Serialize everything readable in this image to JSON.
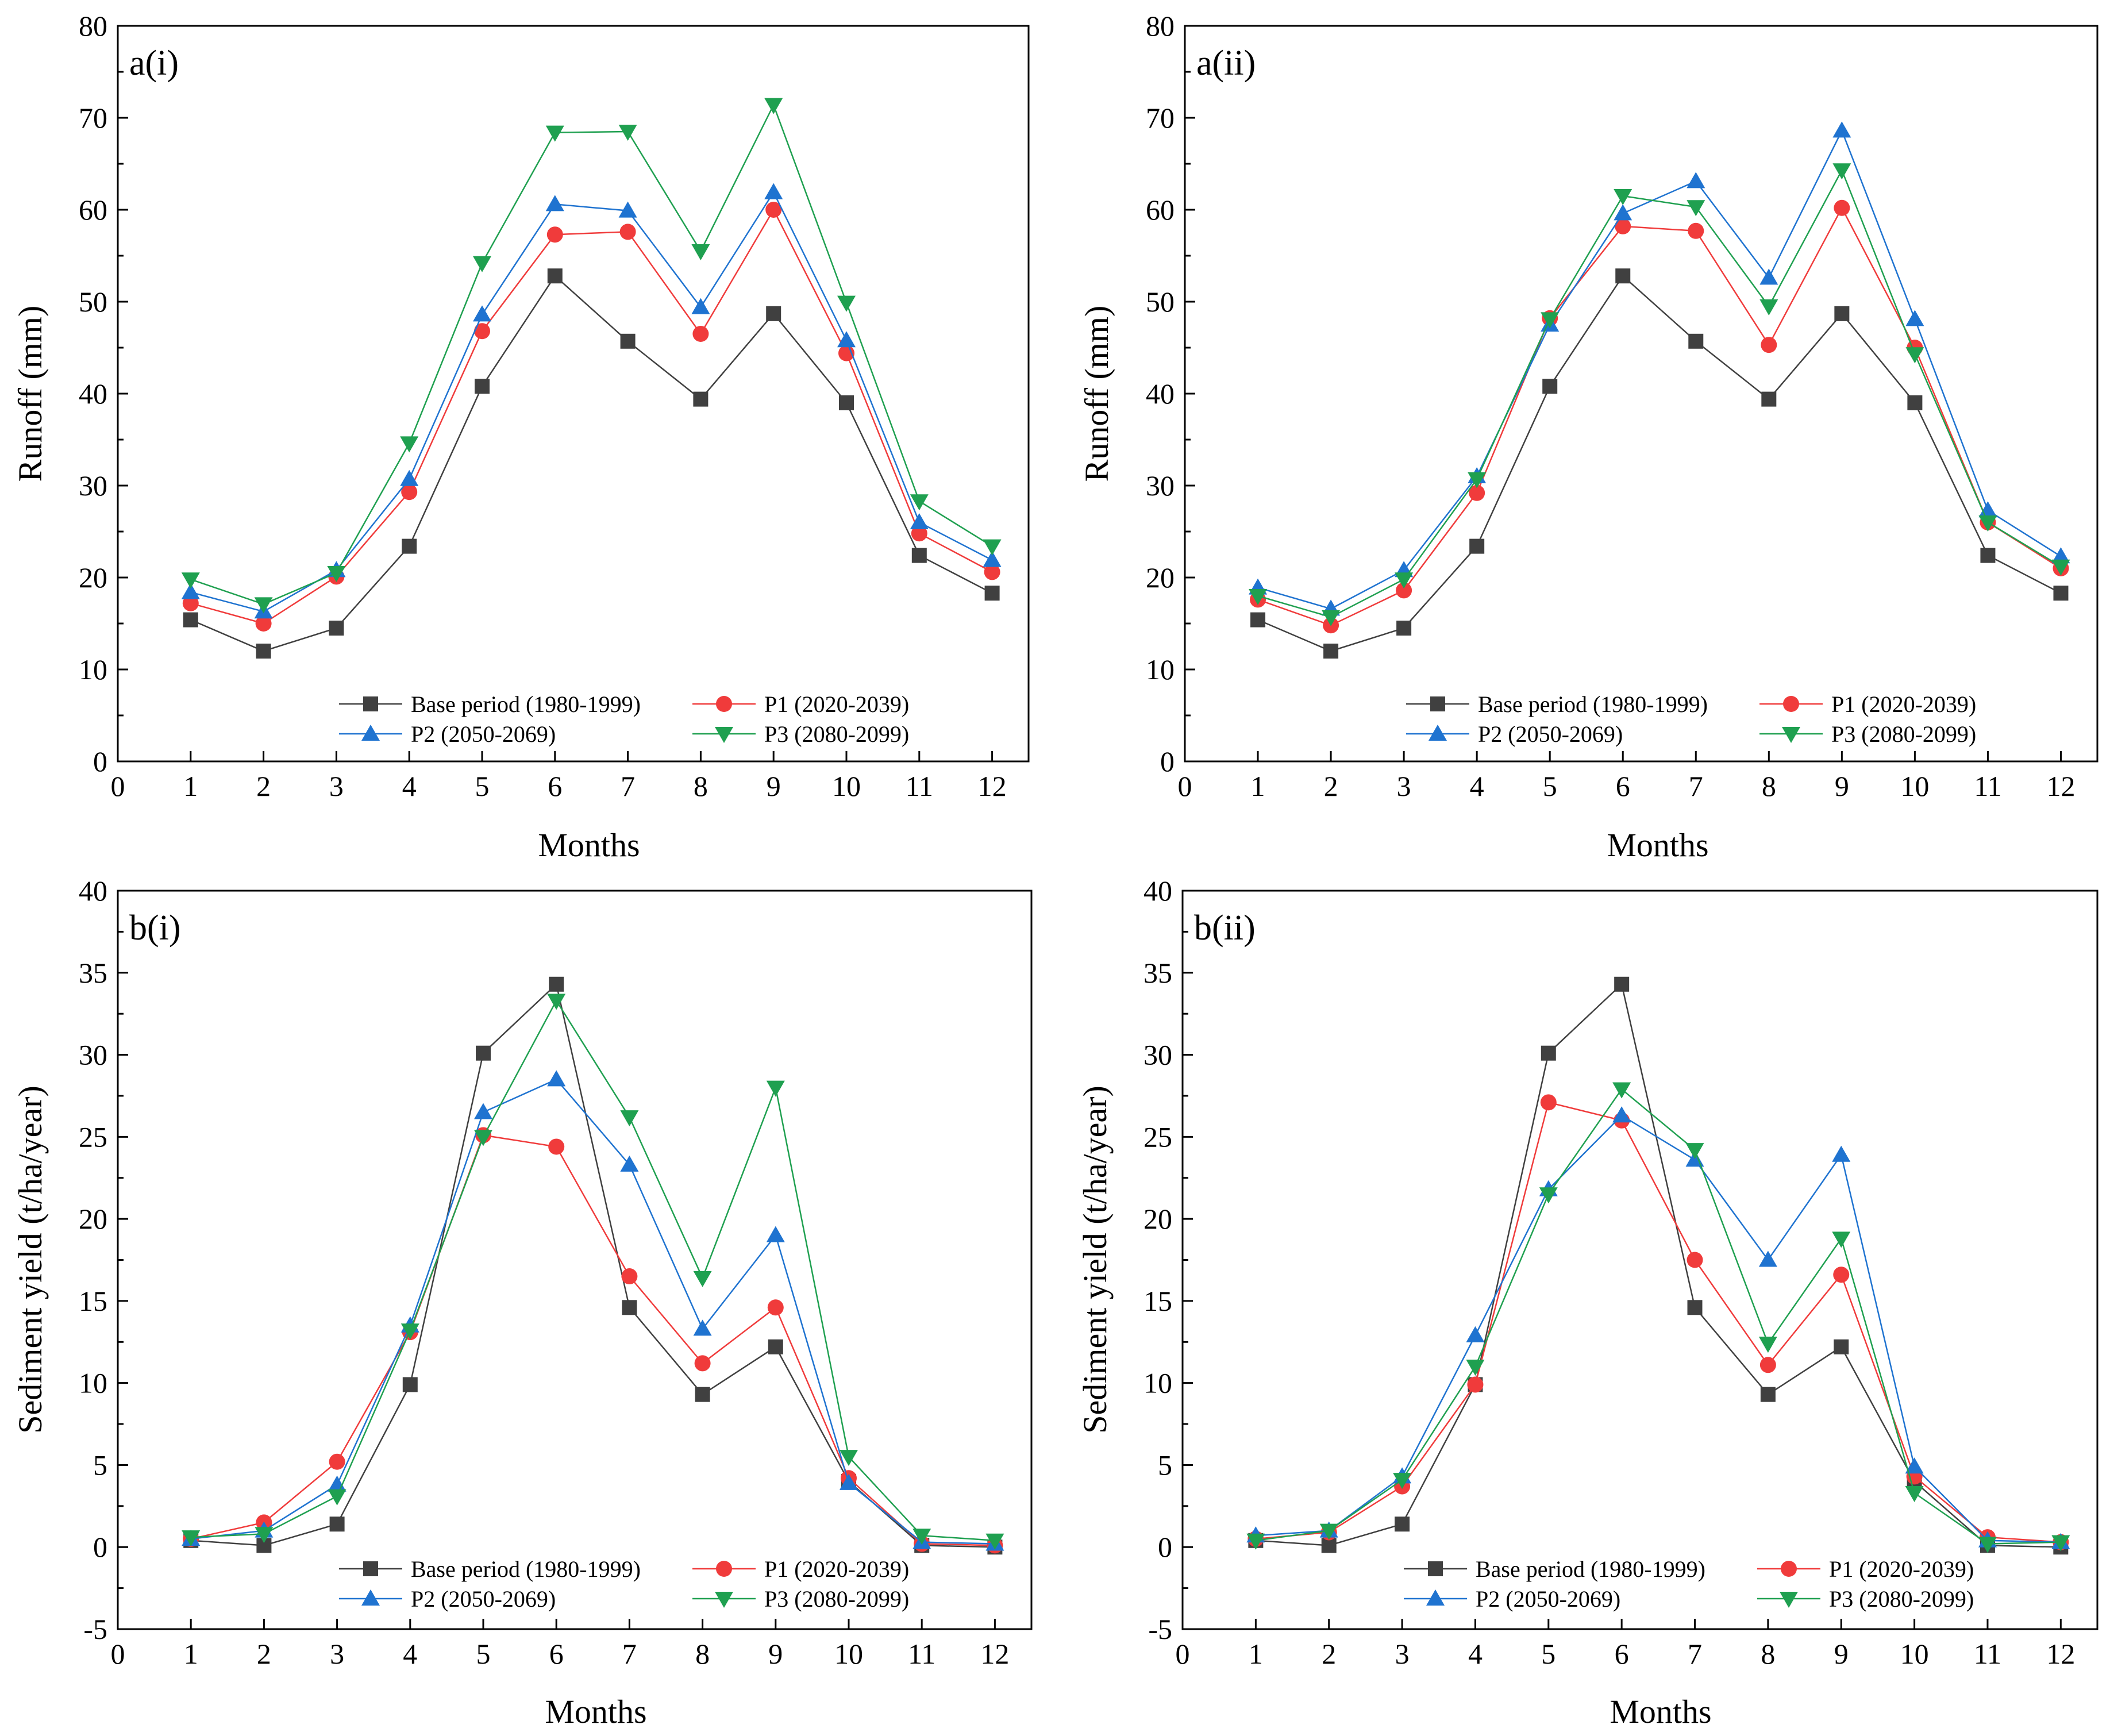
{
  "colors": {
    "base": "#404040",
    "p1": "#f03b3b",
    "p2": "#1f73d0",
    "p3": "#1fa050"
  },
  "chart_data": [
    {
      "id": "a-i",
      "type": "line",
      "panel_label": "a(i)",
      "xlabel": "Months",
      "ylabel": "Runoff (mm)",
      "xlim": [
        0,
        12.5
      ],
      "ylim": [
        0,
        80
      ],
      "xticks": [
        "0",
        "1",
        "2",
        "3",
        "4",
        "5",
        "6",
        "7",
        "8",
        "9",
        "10",
        "11",
        "12"
      ],
      "yticks": [
        "0",
        "10",
        "20",
        "30",
        "40",
        "50",
        "60",
        "70",
        "80"
      ],
      "legend_position": "lower-center",
      "x": [
        1,
        2,
        3,
        4,
        5,
        6,
        7,
        8,
        9,
        10,
        11,
        12
      ],
      "series": [
        {
          "name": "Base period (1980-1999)",
          "key": "base",
          "marker": "square",
          "values": [
            15.4,
            12.0,
            14.5,
            23.4,
            40.8,
            52.8,
            45.7,
            39.4,
            48.7,
            39.0,
            22.4,
            18.3
          ]
        },
        {
          "name": "P1 (2020-2039)",
          "key": "p1",
          "marker": "circle",
          "values": [
            17.2,
            15.0,
            20.1,
            29.3,
            46.8,
            57.3,
            57.6,
            46.5,
            60.0,
            44.4,
            24.8,
            20.6
          ]
        },
        {
          "name": "P2 (2050-2069)",
          "key": "p2",
          "marker": "triangle-up",
          "values": [
            18.4,
            16.3,
            20.8,
            30.7,
            48.6,
            60.6,
            59.9,
            49.4,
            61.9,
            45.8,
            26.0,
            21.9
          ]
        },
        {
          "name": "P3 (2080-2099)",
          "key": "p3",
          "marker": "triangle-down",
          "values": [
            19.8,
            17.1,
            20.5,
            34.6,
            54.2,
            68.4,
            68.5,
            55.5,
            71.4,
            49.9,
            28.3,
            23.4
          ]
        }
      ]
    },
    {
      "id": "a-ii",
      "type": "line",
      "panel_label": "a(ii)",
      "xlabel": "Months",
      "ylabel": "Runoff (mm)",
      "xlim": [
        0,
        12.5
      ],
      "ylim": [
        0,
        80
      ],
      "xticks": [
        "0",
        "1",
        "2",
        "3",
        "4",
        "5",
        "6",
        "7",
        "8",
        "9",
        "10",
        "11",
        "12"
      ],
      "yticks": [
        "0",
        "10",
        "20",
        "30",
        "40",
        "50",
        "60",
        "70",
        "80"
      ],
      "legend_position": "lower-center",
      "x": [
        1,
        2,
        3,
        4,
        5,
        6,
        7,
        8,
        9,
        10,
        11,
        12
      ],
      "series": [
        {
          "name": "Base period (1980-1999)",
          "key": "base",
          "marker": "square",
          "values": [
            15.4,
            12.0,
            14.5,
            23.4,
            40.8,
            52.8,
            45.7,
            39.4,
            48.7,
            39.0,
            22.4,
            18.3
          ]
        },
        {
          "name": "P1 (2020-2039)",
          "key": "p1",
          "marker": "circle",
          "values": [
            17.6,
            14.8,
            18.6,
            29.2,
            48.2,
            58.2,
            57.7,
            45.3,
            60.2,
            45.0,
            26.0,
            21.0
          ]
        },
        {
          "name": "P2 (2050-2069)",
          "key": "p2",
          "marker": "triangle-up",
          "values": [
            18.9,
            16.6,
            20.8,
            31.0,
            47.5,
            59.6,
            63.1,
            52.6,
            68.6,
            48.1,
            27.3,
            22.3
          ]
        },
        {
          "name": "P3 (2080-2099)",
          "key": "p3",
          "marker": "triangle-down",
          "values": [
            18.0,
            15.7,
            19.8,
            30.7,
            48.1,
            61.5,
            60.3,
            49.5,
            64.3,
            44.3,
            26.0,
            21.2
          ]
        }
      ]
    },
    {
      "id": "b-i",
      "type": "line",
      "panel_label": "b(i)",
      "xlabel": "Months",
      "ylabel": "Sediment yield (t/ha/year)",
      "xlim": [
        0,
        12.5
      ],
      "ylim": [
        -5,
        40
      ],
      "xticks": [
        "0",
        "1",
        "2",
        "3",
        "4",
        "5",
        "6",
        "7",
        "8",
        "9",
        "10",
        "11",
        "12"
      ],
      "yticks": [
        "-5",
        "0",
        "5",
        "10",
        "15",
        "20",
        "25",
        "30",
        "35",
        "40"
      ],
      "legend_position": "lower-center",
      "x": [
        1,
        2,
        3,
        4,
        5,
        6,
        7,
        8,
        9,
        10,
        11,
        12
      ],
      "series": [
        {
          "name": "Base period (1980-1999)",
          "key": "base",
          "marker": "square",
          "values": [
            0.4,
            0.1,
            1.4,
            9.9,
            30.1,
            34.3,
            14.6,
            9.3,
            12.2,
            4.0,
            0.1,
            0.0
          ]
        },
        {
          "name": "P1 (2020-2039)",
          "key": "p1",
          "marker": "circle",
          "values": [
            0.5,
            1.5,
            5.2,
            13.1,
            25.1,
            24.4,
            16.5,
            11.2,
            14.6,
            4.2,
            0.2,
            0.1
          ]
        },
        {
          "name": "P2 (2050-2069)",
          "key": "p2",
          "marker": "triangle-up",
          "values": [
            0.5,
            1.0,
            3.8,
            13.5,
            26.5,
            28.5,
            23.3,
            13.3,
            19.0,
            3.9,
            0.3,
            0.2
          ]
        },
        {
          "name": "P3 (2080-2099)",
          "key": "p3",
          "marker": "triangle-down",
          "values": [
            0.6,
            0.8,
            3.1,
            13.2,
            25.0,
            33.3,
            26.2,
            16.4,
            28.0,
            5.5,
            0.7,
            0.4
          ]
        }
      ]
    },
    {
      "id": "b-ii",
      "type": "line",
      "panel_label": "b(ii)",
      "xlabel": "Months",
      "ylabel": "Sediment yield (t/ha/year)",
      "xlim": [
        0,
        12.5
      ],
      "ylim": [
        -5,
        40
      ],
      "xticks": [
        "0",
        "1",
        "2",
        "3",
        "4",
        "5",
        "6",
        "7",
        "8",
        "9",
        "10",
        "11",
        "12"
      ],
      "yticks": [
        "-5",
        "0",
        "5",
        "10",
        "15",
        "20",
        "25",
        "30",
        "35",
        "40"
      ],
      "legend_position": "lower-center",
      "x": [
        1,
        2,
        3,
        4,
        5,
        6,
        7,
        8,
        9,
        10,
        11,
        12
      ],
      "series": [
        {
          "name": "Base period (1980-1999)",
          "key": "base",
          "marker": "square",
          "values": [
            0.4,
            0.1,
            1.4,
            9.9,
            30.1,
            34.3,
            14.6,
            9.3,
            12.2,
            4.0,
            0.1,
            0.0
          ]
        },
        {
          "name": "P1 (2020-2039)",
          "key": "p1",
          "marker": "circle",
          "values": [
            0.5,
            0.9,
            3.7,
            9.9,
            27.1,
            26.0,
            17.5,
            11.1,
            16.6,
            4.3,
            0.6,
            0.3
          ]
        },
        {
          "name": "P2 (2050-2069)",
          "key": "p2",
          "marker": "triangle-up",
          "values": [
            0.7,
            1.0,
            4.3,
            12.9,
            21.8,
            26.3,
            23.6,
            17.5,
            23.9,
            4.9,
            0.4,
            0.3
          ]
        },
        {
          "name": "P3 (2080-2099)",
          "key": "p3",
          "marker": "triangle-down",
          "values": [
            0.4,
            1.0,
            4.1,
            11.0,
            21.5,
            27.9,
            24.2,
            12.4,
            18.8,
            3.3,
            0.2,
            0.3
          ]
        }
      ]
    }
  ]
}
